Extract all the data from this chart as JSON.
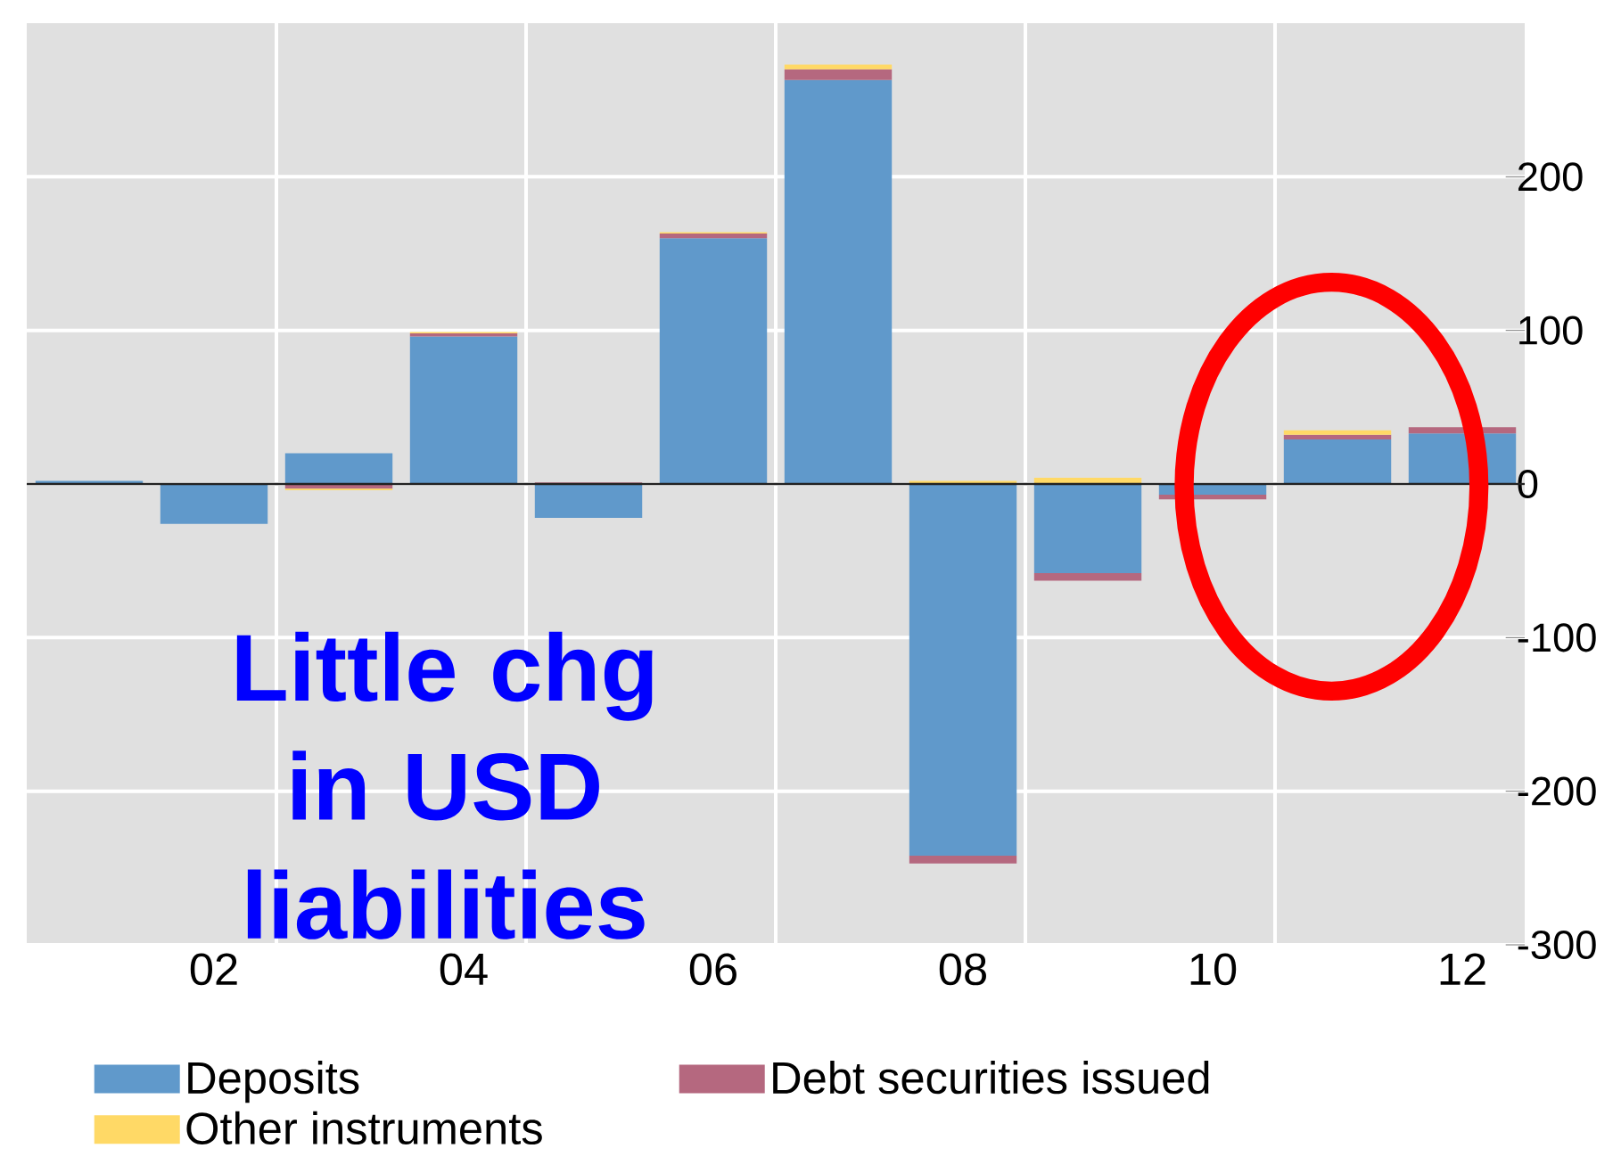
{
  "chart_data": {
    "type": "bar",
    "stacked": true,
    "categories": [
      null,
      "02",
      null,
      "04",
      null,
      "06",
      null,
      "08",
      null,
      "10",
      null,
      "12"
    ],
    "series": [
      {
        "name": "Deposits",
        "color": "#6099cb",
        "values": [
          2,
          -26,
          20,
          96,
          -22,
          160,
          263,
          -242,
          -58,
          -7,
          29,
          33
        ]
      },
      {
        "name": "Debt securities issued",
        "color": "#b5687f",
        "values": [
          0,
          0,
          -3,
          2,
          1,
          3,
          7,
          -5,
          -5,
          -3,
          3,
          4
        ]
      },
      {
        "name": "Other instruments",
        "color": "#ffd966",
        "values": [
          0,
          0,
          -1,
          1,
          0,
          1,
          3,
          2,
          4,
          0,
          3,
          0
        ]
      }
    ],
    "ylim": [
      -300,
      300
    ],
    "yticks": [
      -300,
      -200,
      -100,
      0,
      100,
      200
    ],
    "grid": true,
    "legend": "bottom",
    "ref_lines": [
      {
        "axis": "y",
        "value": 0,
        "color": "#222222"
      }
    ],
    "annotations": [
      "Little chg in USD liabilities"
    ]
  }
}
